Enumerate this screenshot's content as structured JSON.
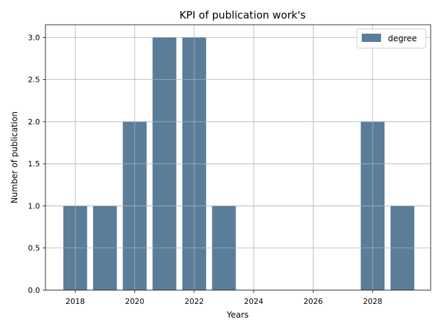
{
  "chart_data": {
    "type": "bar",
    "title": "KPI of publication work's",
    "xlabel": "Years",
    "ylabel": "Number of publication",
    "series": [
      {
        "name": "degree",
        "color": "#5a7d9a",
        "points": [
          {
            "x": 2018,
            "y": 1
          },
          {
            "x": 2019,
            "y": 1
          },
          {
            "x": 2020,
            "y": 2
          },
          {
            "x": 2021,
            "y": 3
          },
          {
            "x": 2022,
            "y": 3
          },
          {
            "x": 2023,
            "y": 1
          },
          {
            "x": 2028,
            "y": 2
          },
          {
            "x": 2029,
            "y": 1
          }
        ]
      }
    ],
    "bar_width": 0.8,
    "xlim": [
      2017.0,
      2029.95
    ],
    "ylim": [
      0,
      3.15
    ],
    "xticks": [
      2018,
      2020,
      2022,
      2024,
      2026,
      2028
    ],
    "xtick_labels": [
      "2018",
      "2020",
      "2022",
      "2024",
      "2026",
      "2028"
    ],
    "yticks": [
      0,
      0.5,
      1.0,
      1.5,
      2.0,
      2.5,
      3.0
    ],
    "ytick_labels": [
      "0.0",
      "0.5",
      "1.0",
      "1.5",
      "2.0",
      "2.5",
      "3.0"
    ],
    "grid": true,
    "legend_position": "upper right"
  }
}
